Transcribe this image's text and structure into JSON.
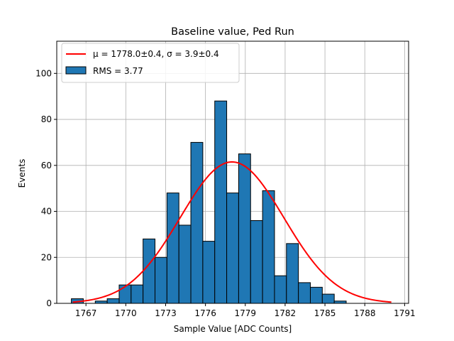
{
  "chart_data": {
    "type": "bar",
    "title": "Baseline value, Ped Run",
    "xlabel": "Sample Value [ADC Counts]",
    "ylabel": "Events",
    "xlim": [
      1764.8,
      1791.3
    ],
    "ylim": [
      0,
      114
    ],
    "xticks": [
      1767,
      1770,
      1773,
      1776,
      1779,
      1782,
      1785,
      1788,
      1791
    ],
    "yticks": [
      0,
      20,
      40,
      60,
      80,
      100
    ],
    "grid": true,
    "bin_edges": [
      1765.9,
      1766.8,
      1767.7,
      1768.6,
      1769.5,
      1770.4,
      1771.3,
      1772.2,
      1773.1,
      1774.0,
      1774.9,
      1775.8,
      1776.7,
      1777.6,
      1778.5,
      1779.4,
      1780.3,
      1781.2,
      1782.1,
      1783.0,
      1783.9,
      1784.8,
      1785.7,
      1786.6,
      1787.5,
      1788.4
    ],
    "counts": [
      2,
      0,
      1,
      2,
      8,
      8,
      28,
      20,
      48,
      34,
      70,
      27,
      88,
      48,
      65,
      36,
      49,
      12,
      26,
      9,
      7,
      4,
      1,
      0,
      0
    ],
    "fit_curve": {
      "label": "μ = 1778.0±0.4, σ = 3.9±0.4",
      "mu": 1778.0,
      "sigma": 3.9,
      "amplitude": 61.5,
      "x_range": [
        1766,
        1790
      ],
      "color": "#ff0000"
    },
    "series": [
      {
        "name": "μ = 1778.0±0.4, σ = 3.9±0.4",
        "kind": "line",
        "color": "#ff0000"
      },
      {
        "name": "RMS = 3.77",
        "kind": "bar",
        "color": "#1f77b4"
      }
    ],
    "legend_position": "top-left"
  }
}
